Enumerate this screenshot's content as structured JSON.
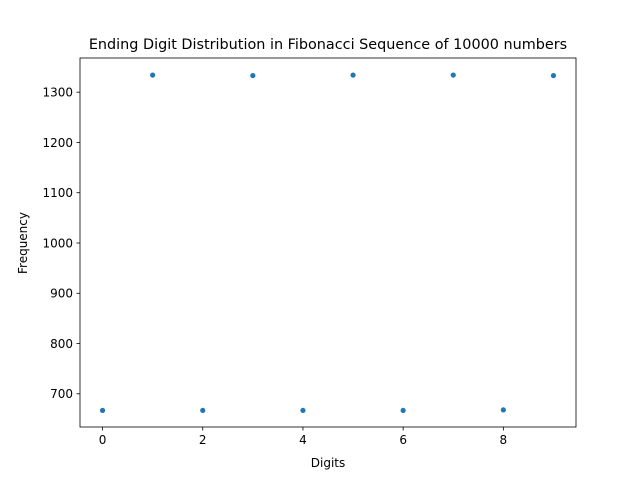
{
  "chart_data": {
    "type": "scatter",
    "title": "Ending Digit Distribution in Fibonacci Sequence of 10000 numbers",
    "xlabel": "Digits",
    "ylabel": "Frequency",
    "x": [
      0,
      1,
      2,
      3,
      4,
      5,
      6,
      7,
      8,
      9
    ],
    "series": [
      {
        "values": [
          667,
          1334,
          667,
          1333,
          667,
          1334,
          667,
          1334,
          668,
          1333
        ]
      }
    ],
    "xlim": [
      -0.45,
      9.45
    ],
    "ylim": [
      634,
      1368
    ],
    "xticks": [
      "0",
      "2",
      "4",
      "6",
      "8"
    ],
    "yticks": [
      "700",
      "800",
      "900",
      "1000",
      "1100",
      "1200",
      "1300"
    ],
    "grid": false,
    "marker_color": "#1f77b4"
  }
}
